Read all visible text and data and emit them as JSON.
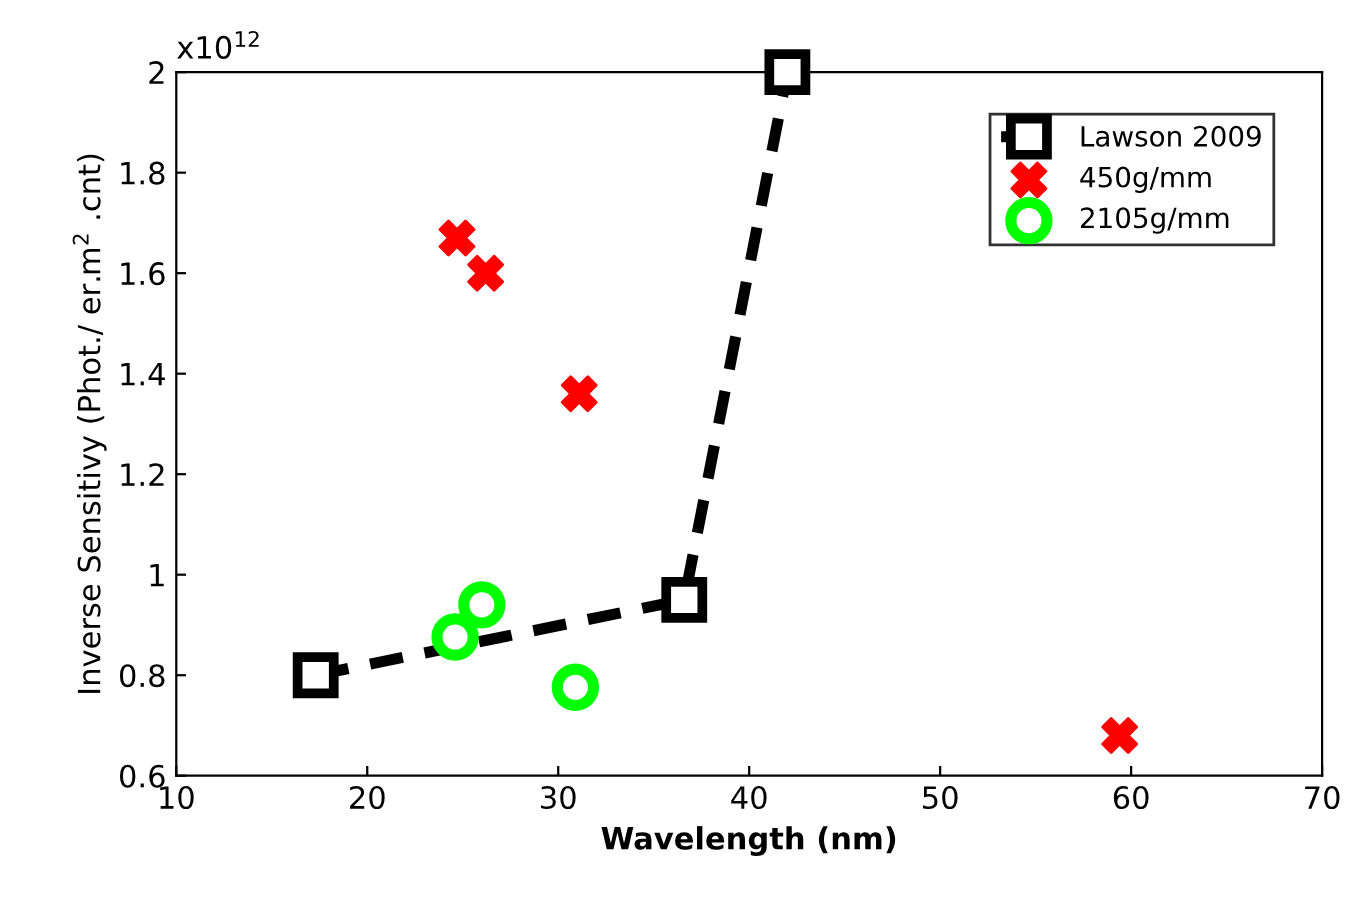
{
  "chart_data": {
    "type": "line",
    "xlabel": "Wavelength (nm)",
    "ylabel": "Inverse Sensitivy (Phot./ er.m$^{2}$ .cnt)",
    "xlim": [
      10,
      70
    ],
    "xticks": [
      10,
      20,
      30,
      40,
      50,
      60,
      70
    ],
    "ylim": [
      0.6,
      2.0
    ],
    "yticks": [
      0.6,
      0.8,
      1,
      1.2,
      1.4,
      1.6,
      1.8,
      2
    ],
    "annotations": [
      "x10$^{12}$"
    ],
    "legend": "top right",
    "grid": false,
    "series": [
      {
        "name": "Lawson 2009",
        "color": "#000000",
        "marker": "square",
        "line_style": "dashed",
        "x": [
          17.3,
          36.6,
          42.0
        ],
        "values": [
          0.8,
          0.95,
          2.0
        ]
      },
      {
        "name": "450g/mm",
        "type": "scatter",
        "color": "#ff0000",
        "marker": "cross",
        "x": [
          24.7,
          26.2,
          31.1,
          59.4
        ],
        "values": [
          1.67,
          1.6,
          1.36,
          0.68
        ]
      },
      {
        "name": "2105g/mm",
        "type": "scatter",
        "color": "#00ff00",
        "marker": "circle",
        "x": [
          24.6,
          26.0,
          30.9
        ],
        "values": [
          0.876,
          0.94,
          0.776
        ]
      }
    ]
  }
}
